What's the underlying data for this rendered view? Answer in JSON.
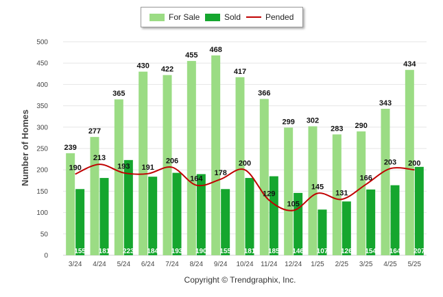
{
  "chart_data": {
    "type": "bar",
    "ylabel": "Number of Homes",
    "xlabel": "",
    "ylim": [
      0,
      500
    ],
    "yticks": [
      0,
      50,
      100,
      150,
      200,
      250,
      300,
      350,
      400,
      450,
      500
    ],
    "categories": [
      "3/24",
      "4/24",
      "5/24",
      "6/24",
      "7/24",
      "8/24",
      "9/24",
      "10/24",
      "11/24",
      "12/24",
      "1/25",
      "2/25",
      "3/25",
      "4/25",
      "5/25"
    ],
    "series": [
      {
        "name": "For Sale",
        "kind": "bar",
        "color": "#9bdc84",
        "values": [
          239,
          277,
          365,
          430,
          422,
          455,
          468,
          417,
          366,
          299,
          302,
          283,
          290,
          343,
          434
        ]
      },
      {
        "name": "Sold",
        "kind": "bar",
        "color": "#15a62e",
        "values": [
          155,
          181,
          223,
          184,
          193,
          190,
          155,
          181,
          185,
          146,
          107,
          126,
          154,
          164,
          207
        ]
      },
      {
        "name": "Pended",
        "kind": "line",
        "color": "#c00000",
        "values": [
          190,
          213,
          193,
          191,
          206,
          164,
          178,
          200,
          129,
          105,
          145,
          131,
          166,
          203,
          200
        ]
      }
    ],
    "grid": true,
    "legend": "top-center"
  },
  "copyright": "Copyright © Trendgraphix, Inc."
}
